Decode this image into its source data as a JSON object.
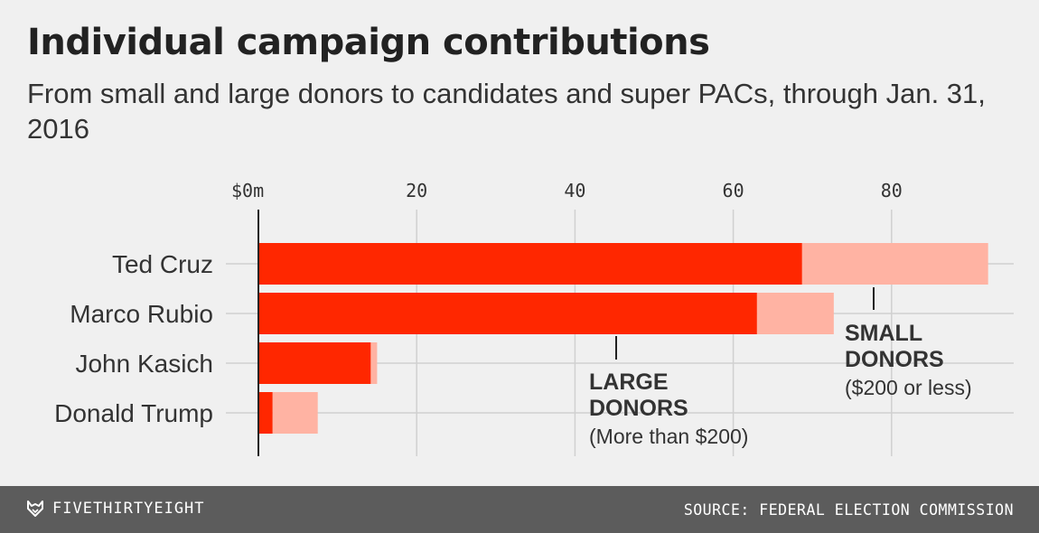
{
  "title": "Individual campaign contributions",
  "subtitle": "From small and large donors to candidates and super PACs, through Jan. 31, 2016",
  "chart_data": {
    "type": "bar",
    "orientation": "horizontal",
    "stacked": true,
    "categories": [
      "Ted Cruz",
      "Marco Rubio",
      "John Kasich",
      "Donald Trump"
    ],
    "series": [
      {
        "name": "LARGE DONORS (More than $200)",
        "values": [
          68.7,
          63.0,
          14.2,
          1.8
        ],
        "color": "#ff2700"
      },
      {
        "name": "SMALL DONORS ($200 or less)",
        "values": [
          23.5,
          9.7,
          0.8,
          5.7
        ],
        "color": "#ffb3a3"
      }
    ],
    "x_ticks": [
      "$0m",
      "20",
      "40",
      "60",
      "80"
    ],
    "x_tick_values": [
      0,
      20,
      40,
      60,
      80
    ],
    "xlim": [
      0,
      95
    ],
    "grid": true,
    "annotations": [
      {
        "id": "large",
        "heading": [
          "LARGE",
          "DONORS"
        ],
        "note": "(More than $200)"
      },
      {
        "id": "small",
        "heading": [
          "SMALL",
          "DONORS"
        ],
        "note": "($200 or less)"
      }
    ]
  },
  "footer": {
    "brand": "FIVETHIRTYEIGHT",
    "brand_icon": "fox-logo-icon",
    "source": "SOURCE: FEDERAL ELECTION COMMISSION"
  },
  "colors": {
    "background": "#f0f0f0",
    "large_donors": "#ff2700",
    "small_donors": "#ffb3a3",
    "footer": "#5c5c5c",
    "grid": "#d0d0d0"
  }
}
